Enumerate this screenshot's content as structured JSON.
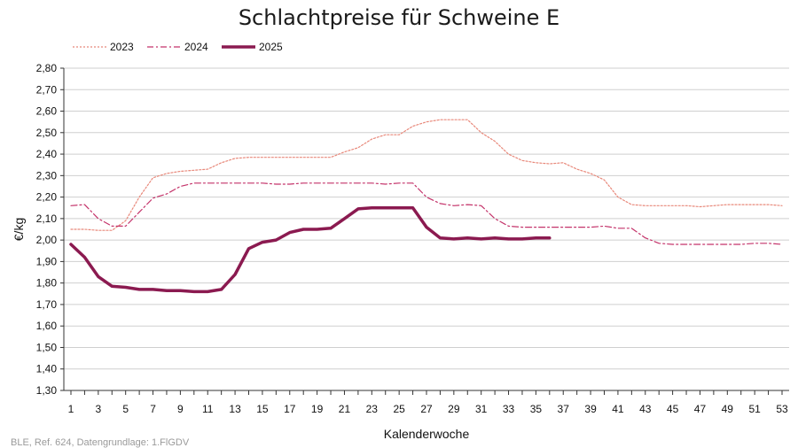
{
  "chart_data": {
    "type": "line",
    "title": "Schlachtpreise für Schweine E",
    "xlabel": "Kalenderwoche",
    "ylabel": "€/kg",
    "xlim": [
      1,
      53
    ],
    "ylim": [
      1.3,
      2.8
    ],
    "x_ticks": [
      1,
      3,
      5,
      7,
      9,
      11,
      13,
      15,
      17,
      19,
      21,
      23,
      25,
      27,
      29,
      31,
      33,
      35,
      37,
      39,
      41,
      43,
      45,
      47,
      49,
      51,
      53
    ],
    "y_ticks": [
      "1,30",
      "1,40",
      "1,50",
      "1,60",
      "1,70",
      "1,80",
      "1,90",
      "2,00",
      "2,10",
      "2,20",
      "2,30",
      "2,40",
      "2,50",
      "2,60",
      "2,70",
      "2,80"
    ],
    "grid": true,
    "legend_position": "top-left",
    "series": [
      {
        "name": "2023",
        "color": "#e8887a",
        "style": "dotted",
        "x": [
          1,
          2,
          3,
          4,
          5,
          6,
          7,
          8,
          9,
          10,
          11,
          12,
          13,
          14,
          15,
          16,
          17,
          18,
          19,
          20,
          21,
          22,
          23,
          24,
          25,
          26,
          27,
          28,
          29,
          30,
          31,
          32,
          33,
          34,
          35,
          36,
          37,
          38,
          39,
          40,
          41,
          42,
          43,
          44,
          45,
          46,
          47,
          48,
          49,
          50,
          51,
          52,
          53
        ],
        "values": [
          2.05,
          2.05,
          2.045,
          2.045,
          2.09,
          2.2,
          2.29,
          2.31,
          2.32,
          2.325,
          2.33,
          2.36,
          2.38,
          2.385,
          2.385,
          2.385,
          2.385,
          2.385,
          2.385,
          2.385,
          2.41,
          2.43,
          2.47,
          2.49,
          2.49,
          2.53,
          2.55,
          2.56,
          2.56,
          2.56,
          2.5,
          2.46,
          2.4,
          2.37,
          2.36,
          2.355,
          2.36,
          2.33,
          2.31,
          2.28,
          2.2,
          2.165,
          2.16,
          2.16,
          2.16,
          2.16,
          2.155,
          2.16,
          2.165,
          2.165,
          2.165,
          2.165,
          2.16
        ]
      },
      {
        "name": "2024",
        "color": "#c4336a",
        "style": "dashdot",
        "x": [
          1,
          2,
          3,
          4,
          5,
          6,
          7,
          8,
          9,
          10,
          11,
          12,
          13,
          14,
          15,
          16,
          17,
          18,
          19,
          20,
          21,
          22,
          23,
          24,
          25,
          26,
          27,
          28,
          29,
          30,
          31,
          32,
          33,
          34,
          35,
          36,
          37,
          38,
          39,
          40,
          41,
          42,
          43,
          44,
          45,
          46,
          47,
          48,
          49,
          50,
          51,
          52,
          53
        ],
        "values": [
          2.16,
          2.165,
          2.1,
          2.065,
          2.065,
          2.13,
          2.195,
          2.215,
          2.25,
          2.265,
          2.265,
          2.265,
          2.265,
          2.265,
          2.265,
          2.26,
          2.26,
          2.265,
          2.265,
          2.265,
          2.265,
          2.265,
          2.265,
          2.26,
          2.265,
          2.265,
          2.2,
          2.17,
          2.16,
          2.165,
          2.16,
          2.1,
          2.065,
          2.06,
          2.06,
          2.06,
          2.06,
          2.06,
          2.06,
          2.065,
          2.055,
          2.055,
          2.01,
          1.985,
          1.98,
          1.98,
          1.98,
          1.98,
          1.98,
          1.98,
          1.985,
          1.985,
          1.98
        ]
      },
      {
        "name": "2025",
        "color": "#8b1a50",
        "style": "solid",
        "x": [
          1,
          2,
          3,
          4,
          5,
          6,
          7,
          8,
          9,
          10,
          11,
          12,
          13,
          14,
          15,
          16,
          17,
          18,
          19,
          20,
          21,
          22,
          23,
          24,
          25,
          26,
          27,
          28,
          29,
          30,
          31,
          32,
          33,
          34,
          35,
          36
        ],
        "values": [
          1.98,
          1.92,
          1.83,
          1.785,
          1.78,
          1.77,
          1.77,
          1.765,
          1.765,
          1.76,
          1.76,
          1.77,
          1.84,
          1.96,
          1.99,
          2.0,
          2.035,
          2.05,
          2.05,
          2.055,
          2.1,
          2.145,
          2.15,
          2.15,
          2.15,
          2.15,
          2.06,
          2.01,
          2.005,
          2.01,
          2.005,
          2.01,
          2.005,
          2.005,
          2.01,
          2.01
        ]
      }
    ]
  },
  "source_note": "BLE, Ref. 624, Datengrundlage: 1.FlGDV"
}
